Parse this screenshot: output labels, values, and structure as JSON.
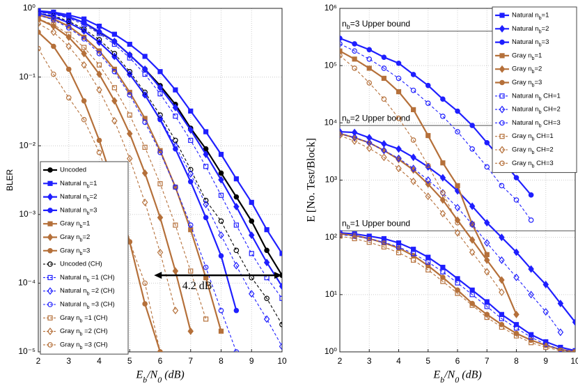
{
  "chart_data": [
    {
      "type": "line",
      "ylabel": "BLER",
      "xlabel": "E_b/N_0 (dB)",
      "log_y": true,
      "grid": true,
      "x": [
        2,
        2.5,
        3,
        3.5,
        4,
        4.5,
        5,
        5.5,
        6,
        6.5,
        7,
        7.5,
        8,
        8.5,
        9,
        9.5,
        10
      ],
      "xlim": [
        2,
        10
      ],
      "xticks": [
        2,
        3,
        4,
        5,
        6,
        7,
        8,
        9,
        10
      ],
      "ylim": [
        1e-05,
        1
      ],
      "yticks": [
        {
          "value": 1e-05,
          "label": "10⁻⁵"
        },
        {
          "value": 0.0001,
          "label": "10⁻⁴"
        },
        {
          "value": 0.001,
          "label": "10⁻³"
        },
        {
          "value": 0.01,
          "label": "10⁻²"
        },
        {
          "value": 0.1,
          "label": "10⁻¹"
        },
        {
          "value": 1,
          "label": "10⁰"
        }
      ],
      "arrow": {
        "label": "4.2 dB",
        "x": [
          5.8,
          10
        ],
        "y": 0.00013
      },
      "series": [
        {
          "name": "Uncoded",
          "color": "#000000",
          "marker": "o",
          "dashed": false,
          "values": [
            0.9,
            0.85,
            0.75,
            0.62,
            0.45,
            0.33,
            0.21,
            0.13,
            0.075,
            0.04,
            0.018,
            0.009,
            0.004,
            0.0018,
            0.0008,
            0.0003,
            0.00013
          ]
        },
        {
          "name": "Natural n_b=1",
          "color": "#1f1fff",
          "marker": "s",
          "dashed": false,
          "values": [
            0.92,
            0.88,
            0.8,
            0.7,
            0.55,
            0.42,
            0.3,
            0.2,
            0.12,
            0.065,
            0.032,
            0.016,
            0.0075,
            0.0033,
            0.0015,
            0.0006,
            0.00027
          ]
        },
        {
          "name": "Natural n_b=2",
          "color": "#1f1fff",
          "marker": "d",
          "dashed": false,
          "values": [
            0.9,
            0.85,
            0.75,
            0.62,
            0.46,
            0.33,
            0.21,
            0.13,
            0.07,
            0.036,
            0.017,
            0.0075,
            0.0032,
            0.0013,
            0.0005,
            0.0002,
            9e-05
          ]
        },
        {
          "name": "Natural n_b=3",
          "color": "#1f1fff",
          "marker": "o",
          "dashed": false,
          "values": [
            0.85,
            0.75,
            0.62,
            0.47,
            0.32,
            0.2,
            0.11,
            0.055,
            0.024,
            0.009,
            0.003,
            0.0009,
            0.00025,
            4e-05,
            null,
            null,
            null
          ]
        },
        {
          "name": "Gray n_b=1",
          "color": "#b5703a",
          "marker": "s",
          "dashed": false,
          "values": [
            0.8,
            0.7,
            0.55,
            0.38,
            0.24,
            0.13,
            0.06,
            0.025,
            0.0085,
            0.0025,
            0.0006,
            0.00012,
            2e-05,
            null,
            null,
            null,
            null
          ]
        },
        {
          "name": "Gray n_b=2",
          "color": "#b5703a",
          "marker": "d",
          "dashed": false,
          "values": [
            0.7,
            0.55,
            0.38,
            0.22,
            0.11,
            0.045,
            0.015,
            0.004,
            0.0009,
            0.00015,
            2e-05,
            null,
            null,
            null,
            null,
            null,
            null
          ]
        },
        {
          "name": "Gray n_b=3",
          "color": "#b5703a",
          "marker": "o",
          "dashed": false,
          "values": [
            0.45,
            0.28,
            0.13,
            0.045,
            0.012,
            0.0025,
            0.0004,
            5e-05,
            1e-05,
            null,
            null,
            null,
            null,
            null,
            null,
            null,
            null
          ]
        },
        {
          "name": "Uncoded (CH)",
          "color": "#000000",
          "marker": "o",
          "dashed": true,
          "values": [
            0.85,
            0.78,
            0.65,
            0.5,
            0.35,
            0.22,
            0.12,
            0.06,
            0.028,
            0.012,
            0.0045,
            0.0016,
            0.0008,
            0.0003,
            0.00012,
            6e-05,
            2.5e-05
          ]
        },
        {
          "name": "Natural n_b =1 (CH)",
          "color": "#1f1fff",
          "marker": "s",
          "dashed": true,
          "values": [
            0.88,
            0.82,
            0.72,
            0.58,
            0.43,
            0.3,
            0.19,
            0.11,
            0.057,
            0.027,
            0.012,
            0.005,
            0.0019,
            0.0007,
            0.00027,
            0.00012,
            6e-05
          ]
        },
        {
          "name": "Natural n_b =2 (CH)",
          "color": "#1f1fff",
          "marker": "d",
          "dashed": true,
          "values": [
            0.85,
            0.76,
            0.62,
            0.47,
            0.32,
            0.2,
            0.11,
            0.055,
            0.025,
            0.01,
            0.0039,
            0.0014,
            0.0005,
            0.00018,
            7e-05,
            3e-05,
            1.2e-05
          ]
        },
        {
          "name": "Natural n_b =3 (CH)",
          "color": "#1f1fff",
          "marker": "o",
          "dashed": true,
          "values": [
            0.8,
            0.68,
            0.52,
            0.36,
            0.22,
            0.12,
            0.055,
            0.022,
            0.008,
            0.0025,
            0.0007,
            0.00017,
            4e-05,
            1e-05,
            null,
            null,
            null
          ]
        },
        {
          "name": "Gray n_b =1 (CH)",
          "color": "#b5703a",
          "marker": "s",
          "dashed": true,
          "values": [
            0.7,
            0.58,
            0.42,
            0.27,
            0.15,
            0.07,
            0.028,
            0.0095,
            0.0028,
            0.0007,
            0.00015,
            3e-05,
            null,
            null,
            null,
            null,
            null
          ]
        },
        {
          "name": "Gray n_b =2 (CH)",
          "color": "#b5703a",
          "marker": "d",
          "dashed": true,
          "values": [
            0.6,
            0.45,
            0.28,
            0.15,
            0.065,
            0.023,
            0.0065,
            0.0015,
            0.00028,
            4e-05,
            null,
            null,
            null,
            null,
            null,
            null,
            null
          ]
        },
        {
          "name": "Gray n_b =3 (CH)",
          "color": "#b5703a",
          "marker": "o",
          "dashed": true,
          "values": [
            0.26,
            0.11,
            0.05,
            0.024,
            0.008,
            0.002,
            0.0004,
            0.0001,
            1e-05,
            null,
            null,
            null,
            null,
            null,
            null,
            null,
            null
          ]
        }
      ]
    },
    {
      "type": "line",
      "ylabel": "E [No. Test/Block]",
      "xlabel": "E_b/N_0 (dB)",
      "log_y": true,
      "grid": true,
      "x": [
        2,
        2.5,
        3,
        3.5,
        4,
        4.5,
        5,
        5.5,
        6,
        6.5,
        7,
        7.5,
        8,
        8.5,
        9,
        9.5,
        10
      ],
      "xlim": [
        2,
        10
      ],
      "xticks": [
        2,
        3,
        4,
        5,
        6,
        7,
        8,
        9,
        10
      ],
      "ylim": [
        1,
        1000000
      ],
      "yticks": [
        {
          "value": 1,
          "label": "10⁰"
        },
        {
          "value": 10,
          "label": "10¹"
        },
        {
          "value": 100,
          "label": "10²"
        },
        {
          "value": 1000,
          "label": "10³"
        },
        {
          "value": 10000,
          "label": "10⁴"
        },
        {
          "value": 100000,
          "label": "10⁵"
        },
        {
          "value": 1000000,
          "label": "10⁶"
        }
      ],
      "upper_bounds": [
        {
          "label": "n_b=3 Upper bound",
          "value": 400000
        },
        {
          "label": "n_b=2 Upper bound",
          "value": 9000
        },
        {
          "label": "n_b=1 Upper bound",
          "value": 130
        }
      ],
      "series": [
        {
          "name": "Natural n_b=1",
          "color": "#1f1fff",
          "marker": "s",
          "dashed": false,
          "values": [
            120,
            115,
            105,
            95,
            80,
            62,
            45,
            30,
            19,
            12,
            7.5,
            4.5,
            3,
            2,
            1.5,
            1.2,
            1.05
          ]
        },
        {
          "name": "Natural n_b=2",
          "color": "#1f1fff",
          "marker": "d",
          "dashed": false,
          "values": [
            7000,
            6800,
            5500,
            4300,
            3500,
            2500,
            1700,
            1100,
            650,
            350,
            180,
            100,
            55,
            28,
            15,
            7,
            3.3
          ]
        },
        {
          "name": "Natural n_b=3",
          "color": "#1f1fff",
          "marker": "o",
          "dashed": false,
          "values": [
            300000,
            240000,
            190000,
            140000,
            110000,
            70000,
            45000,
            26000,
            16000,
            9000,
            4500,
            2300,
            1100,
            550,
            null,
            null,
            null
          ]
        },
        {
          "name": "Gray n_b=1",
          "color": "#b5703a",
          "marker": "s",
          "dashed": false,
          "values": [
            180000,
            130000,
            90000,
            60000,
            35000,
            17000,
            6000,
            2000,
            800,
            170,
            50,
            null,
            null,
            null,
            null,
            null,
            null
          ]
        },
        {
          "name": "Gray n_b=2",
          "color": "#b5703a",
          "marker": "d",
          "dashed": false,
          "values": [
            6500,
            5500,
            4500,
            3300,
            2300,
            1500,
            850,
            450,
            200,
            90,
            40,
            18,
            4.5,
            null,
            null,
            null,
            null
          ]
        },
        {
          "name": "Gray n_b=3",
          "color": "#b5703a",
          "marker": "o",
          "dashed": false,
          "values": [
            115,
            108,
            95,
            80,
            65,
            48,
            32,
            20,
            12,
            7,
            4.5,
            3,
            2.1,
            1.6,
            1.3,
            1.1,
            1.0
          ]
        },
        {
          "name": "Natural n_b CH=1",
          "color": "#1f1fff",
          "marker": "s",
          "dashed": true,
          "values": [
            112,
            105,
            95,
            82,
            68,
            52,
            37,
            25,
            16,
            10,
            6.2,
            3.8,
            2.6,
            1.8,
            1.35,
            1.1,
            1.0
          ]
        },
        {
          "name": "Natural n_b CH=2",
          "color": "#1f1fff",
          "marker": "d",
          "dashed": true,
          "values": [
            6500,
            5600,
            4500,
            3300,
            2400,
            1600,
            1000,
            600,
            330,
            170,
            80,
            40,
            20,
            10,
            5,
            2.2,
            null
          ]
        },
        {
          "name": "Natural n_b CH=3",
          "color": "#1f1fff",
          "marker": "o",
          "dashed": true,
          "values": [
            240000,
            180000,
            130000,
            90000,
            60000,
            37000,
            22000,
            13000,
            7000,
            3500,
            1700,
            800,
            450,
            200,
            null,
            null,
            null
          ]
        },
        {
          "name": "Gray n_b CH=1",
          "color": "#b5703a",
          "marker": "s",
          "dashed": true,
          "values": [
            105,
            95,
            82,
            68,
            54,
            40,
            27,
            17,
            10.5,
            6.5,
            4,
            2.7,
            1.9,
            1.45,
            1.2,
            1.05,
            1.0
          ]
        },
        {
          "name": "Gray n_b CH=2",
          "color": "#b5703a",
          "marker": "d",
          "dashed": true,
          "values": [
            6000,
            4800,
            3600,
            2500,
            1600,
            950,
            520,
            260,
            120,
            55,
            25,
            11,
            null,
            null,
            null,
            null,
            null
          ]
        },
        {
          "name": "Gray n_b CH=3",
          "color": "#b5703a",
          "marker": "o",
          "dashed": true,
          "values": [
            150000,
            90000,
            50000,
            26000,
            12000,
            5000,
            1800,
            600,
            180,
            null,
            null,
            null,
            null,
            null,
            null,
            null,
            null
          ]
        }
      ]
    }
  ]
}
